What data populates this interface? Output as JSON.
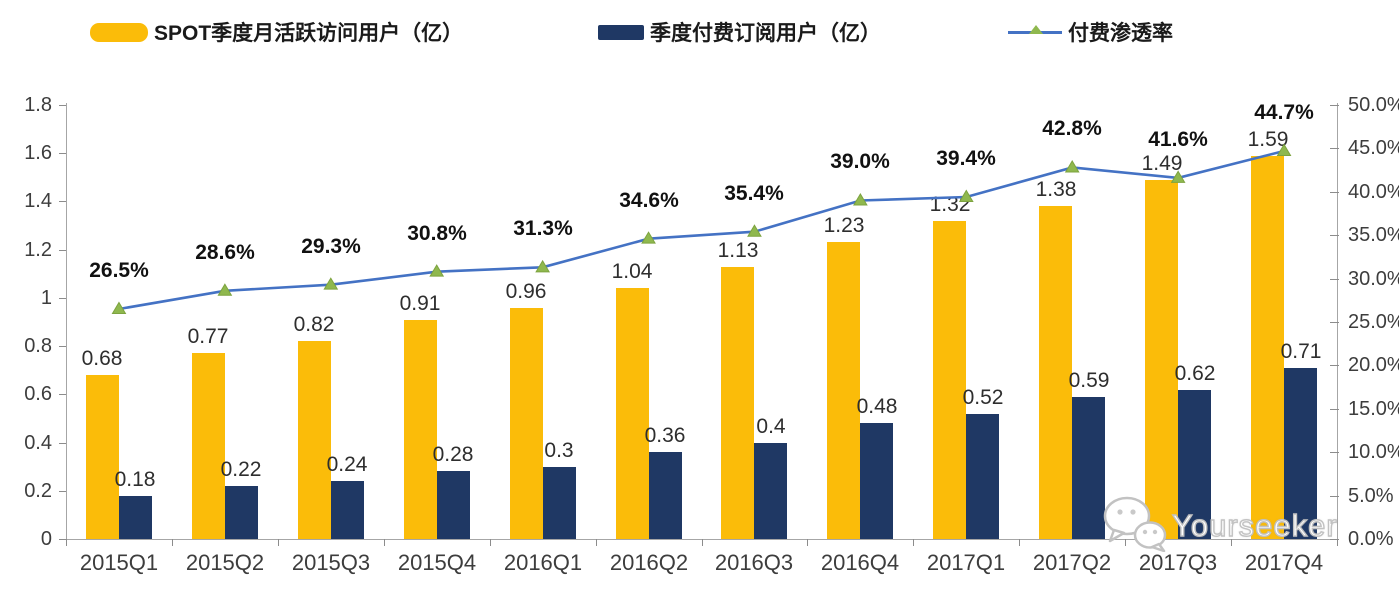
{
  "legend": {
    "items": [
      {
        "label": "SPOT季度月活跃访问用户（亿）",
        "type": "bar",
        "color": "#FBBC09"
      },
      {
        "label": "季度付费订阅用户（亿）",
        "type": "bar",
        "color": "#1F3864"
      },
      {
        "label": "付费渗透率",
        "type": "line",
        "color": "#4472C4",
        "marker_color": "#8FB84E"
      }
    ]
  },
  "chart_data": {
    "type": "combo",
    "categories": [
      "2015Q1",
      "2015Q2",
      "2015Q3",
      "2015Q4",
      "2016Q1",
      "2016Q2",
      "2016Q3",
      "2016Q4",
      "2017Q1",
      "2017Q2",
      "2017Q3",
      "2017Q4"
    ],
    "series": [
      {
        "name": "SPOT季度月活跃访问用户（亿）",
        "type": "bar",
        "color": "#FBBC09",
        "y_axis": "left",
        "values": [
          0.68,
          0.77,
          0.82,
          0.91,
          0.96,
          1.04,
          1.13,
          1.23,
          1.32,
          1.38,
          1.49,
          1.59
        ],
        "labels": [
          "0.68",
          "0.77",
          "0.82",
          "0.91",
          "0.96",
          "1.04",
          "1.13",
          "1.23",
          "1.32",
          "1.38",
          "1.49",
          "1.59"
        ]
      },
      {
        "name": "季度付费订阅用户（亿）",
        "type": "bar",
        "color": "#1F3864",
        "y_axis": "left",
        "values": [
          0.18,
          0.22,
          0.24,
          0.28,
          0.3,
          0.36,
          0.4,
          0.48,
          0.52,
          0.59,
          0.62,
          0.71
        ],
        "labels": [
          "0.18",
          "0.22",
          "0.24",
          "0.28",
          "0.3",
          "0.36",
          "0.4",
          "0.48",
          "0.52",
          "0.59",
          "0.62",
          "0.71"
        ]
      },
      {
        "name": "付费渗透率",
        "type": "line",
        "color": "#4472C4",
        "marker": "triangle",
        "marker_color": "#8FB84E",
        "y_axis": "right",
        "values": [
          26.5,
          28.6,
          29.3,
          30.8,
          31.3,
          34.6,
          35.4,
          39.0,
          39.4,
          42.8,
          41.6,
          44.7
        ],
        "labels": [
          "26.5%",
          "28.6%",
          "29.3%",
          "30.8%",
          "31.3%",
          "34.6%",
          "35.4%",
          "39.0%",
          "39.4%",
          "42.8%",
          "41.6%",
          "44.7%"
        ]
      }
    ],
    "left_axis": {
      "min": 0,
      "max": 1.8,
      "step": 0.2,
      "tick_labels": [
        "1.8",
        "1.6",
        "1.4",
        "1.2",
        "1",
        "0.8",
        "0.6",
        "0.4",
        "0.2",
        "0"
      ]
    },
    "right_axis": {
      "min": 0,
      "max": 50,
      "step": 5,
      "tick_labels": [
        "50.0%",
        "45.0%",
        "40.0%",
        "35.0%",
        "30.0%",
        "25.0%",
        "20.0%",
        "15.0%",
        "10.0%",
        "5.0%",
        "0.0%"
      ]
    },
    "grid": false,
    "legend_position": "top",
    "title": ""
  },
  "watermark": {
    "text": "Yourseeker",
    "icon": "wechat-bubbles-icon"
  }
}
